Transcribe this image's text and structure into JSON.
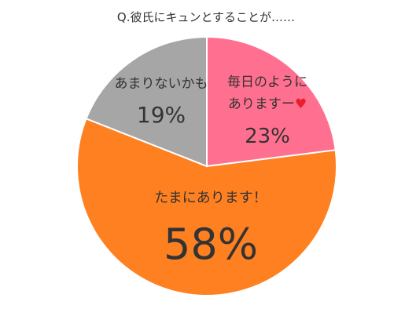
{
  "chart_data": {
    "type": "pie",
    "title": "Q.彼氏にキュンとすることが……",
    "slices": [
      {
        "label_lines": [
          "毎日のように",
          "ありますー"
        ],
        "heart": "♥",
        "value": 23,
        "value_label": "23%",
        "color": "#FF7090"
      },
      {
        "label_lines": [
          "たまにあります！"
        ],
        "heart": "",
        "value": 58,
        "value_label": "58%",
        "color": "#FF8020"
      },
      {
        "label_lines": [
          "あまりないかも"
        ],
        "heart": "",
        "value": 19,
        "value_label": "19%",
        "color": "#A6A6A6"
      }
    ],
    "heart_color": "#E8202A"
  }
}
